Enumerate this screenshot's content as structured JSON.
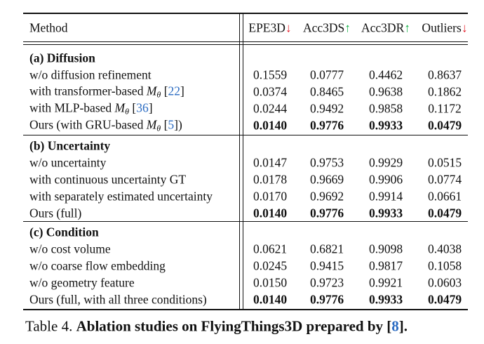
{
  "table": {
    "method_header": "Method",
    "columns": [
      {
        "label": "EPE3D",
        "arrow": "↓",
        "arrow_color": "#e5202b"
      },
      {
        "label": "Acc3DS",
        "arrow": "↑",
        "arrow_color": "#19b34a"
      },
      {
        "label": "Acc3DR",
        "arrow": "↑",
        "arrow_color": "#19b34a"
      },
      {
        "label": "Outliers",
        "arrow": "↓",
        "arrow_color": "#e5202b"
      }
    ],
    "sections": [
      {
        "title": "(a) Diffusion",
        "rows": [
          {
            "method": [
              {
                "t": "w/o diffusion refinement"
              }
            ],
            "values": [
              "0.1559",
              "0.0777",
              "0.4462",
              "0.8637"
            ],
            "bold": false
          },
          {
            "method": [
              {
                "t": "with transformer-based "
              },
              {
                "t": "M",
                "style": "math"
              },
              {
                "t": "θ",
                "style": "sub"
              },
              {
                "t": " ["
              },
              {
                "t": "22",
                "style": "cite"
              },
              {
                "t": "]"
              }
            ],
            "values": [
              "0.0374",
              "0.8465",
              "0.9638",
              "0.1862"
            ],
            "bold": false
          },
          {
            "method": [
              {
                "t": "with MLP-based "
              },
              {
                "t": "M",
                "style": "math"
              },
              {
                "t": "θ",
                "style": "sub"
              },
              {
                "t": " ["
              },
              {
                "t": "36",
                "style": "cite"
              },
              {
                "t": "]"
              }
            ],
            "values": [
              "0.0244",
              "0.9492",
              "0.9858",
              "0.1172"
            ],
            "bold": false
          },
          {
            "method": [
              {
                "t": "Ours (with GRU-based "
              },
              {
                "t": "M",
                "style": "math"
              },
              {
                "t": "θ",
                "style": "sub"
              },
              {
                "t": " ["
              },
              {
                "t": "5",
                "style": "cite"
              },
              {
                "t": "])"
              }
            ],
            "values": [
              "0.0140",
              "0.9776",
              "0.9933",
              "0.0479"
            ],
            "bold": true
          }
        ]
      },
      {
        "title": "(b) Uncertainty",
        "rows": [
          {
            "method": [
              {
                "t": "w/o uncertainty"
              }
            ],
            "values": [
              "0.0147",
              "0.9753",
              "0.9929",
              "0.0515"
            ],
            "bold": false
          },
          {
            "method": [
              {
                "t": "with continuous uncertainty GT"
              }
            ],
            "values": [
              "0.0178",
              "0.9669",
              "0.9906",
              "0.0774"
            ],
            "bold": false
          },
          {
            "method": [
              {
                "t": "with separately estimated uncertainty"
              }
            ],
            "values": [
              "0.0170",
              "0.9692",
              "0.9914",
              "0.0661"
            ],
            "bold": false
          },
          {
            "method": [
              {
                "t": "Ours (full)"
              }
            ],
            "values": [
              "0.0140",
              "0.9776",
              "0.9933",
              "0.0479"
            ],
            "bold": true
          }
        ]
      },
      {
        "title": "(c) Condition",
        "rows": [
          {
            "method": [
              {
                "t": "w/o cost volume"
              }
            ],
            "values": [
              "0.0621",
              "0.6821",
              "0.9098",
              "0.4038"
            ],
            "bold": false
          },
          {
            "method": [
              {
                "t": "w/o coarse flow embedding"
              }
            ],
            "values": [
              "0.0245",
              "0.9415",
              "0.9817",
              "0.1058"
            ],
            "bold": false
          },
          {
            "method": [
              {
                "t": "w/o geometry feature"
              }
            ],
            "values": [
              "0.0150",
              "0.9723",
              "0.9921",
              "0.0603"
            ],
            "bold": false
          },
          {
            "method": [
              {
                "t": "Ours (full, with all three conditions)"
              }
            ],
            "values": [
              "0.0140",
              "0.9776",
              "0.9933",
              "0.0479"
            ],
            "bold": true
          }
        ]
      }
    ]
  },
  "caption": [
    {
      "t": "Table 4. "
    },
    {
      "t": "Ablation studies on FlyingThings3D prepared by [",
      "style": "bold"
    },
    {
      "t": "8",
      "style": "cite-bold"
    },
    {
      "t": "].",
      "style": "bold"
    }
  ]
}
